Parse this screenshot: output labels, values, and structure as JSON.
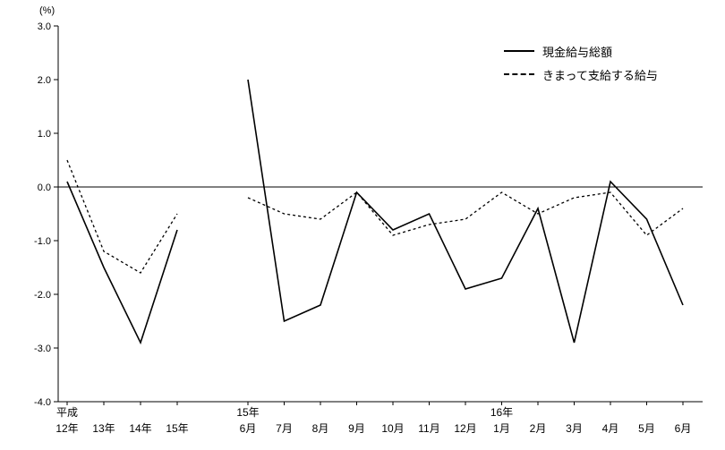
{
  "chart_data": {
    "type": "line",
    "title": "",
    "ylabel": "(%)",
    "xlabel": "",
    "ylim": [
      -4.0,
      3.0
    ],
    "ytick_step": 1.0,
    "yticks": [
      "3.0",
      "2.0",
      "1.0",
      "0.0",
      "-1.0",
      "-2.0",
      "-3.0",
      "-4.0"
    ],
    "grid": false,
    "legend_position": "top-right",
    "x_groups": [
      {
        "name": "annual",
        "categories": [
          "12年",
          "13年",
          "14年",
          "15年"
        ],
        "era_labels": [
          {
            "label": "平成",
            "index": 0
          }
        ]
      },
      {
        "name": "monthly",
        "categories": [
          "6月",
          "7月",
          "8月",
          "9月",
          "10月",
          "11月",
          "12月",
          "1月",
          "2月",
          "3月",
          "4月",
          "5月",
          "6月"
        ],
        "era_labels": [
          {
            "label": "15年",
            "index": 0
          },
          {
            "label": "16年",
            "index": 7
          }
        ]
      }
    ],
    "series": [
      {
        "name": "現金給与総額",
        "style": "solid",
        "annual": [
          0.1,
          -1.5,
          -2.9,
          -0.8
        ],
        "monthly": [
          2.0,
          -2.5,
          -2.2,
          -0.1,
          -0.8,
          -0.5,
          -1.9,
          -1.7,
          -0.4,
          -2.9,
          0.1,
          -0.6,
          -2.2
        ]
      },
      {
        "name": "きまって支給する給与",
        "style": "dashed",
        "annual": [
          0.5,
          -1.2,
          -1.6,
          -0.5
        ],
        "monthly": [
          -0.2,
          -0.5,
          -0.6,
          -0.1,
          -0.9,
          -0.7,
          -0.6,
          -0.1,
          -0.5,
          -0.2,
          -0.1,
          -0.9,
          -0.4
        ]
      }
    ],
    "colors": {
      "line": "#000000",
      "axis": "#000000",
      "text": "#000000"
    }
  }
}
